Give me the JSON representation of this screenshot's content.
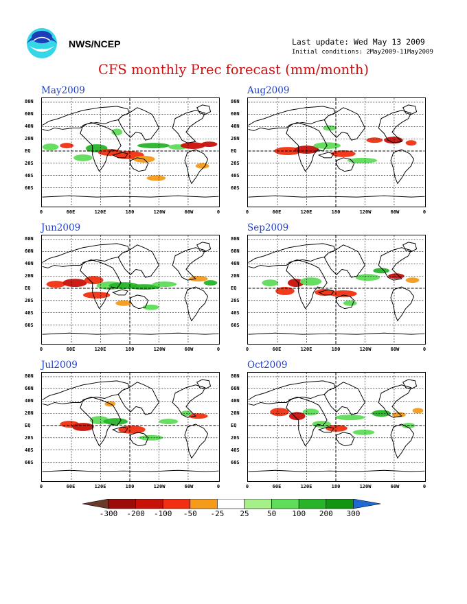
{
  "header": {
    "org": "NWS/NCEP",
    "last_update": "Last update: Wed May 13 2009",
    "initial_conditions": "Initial conditions: 2May2009-11May2009",
    "title": "CFS monthly Prec forecast (mm/month)"
  },
  "axes": {
    "lat_labels": [
      "80N",
      "60N",
      "40N",
      "20N",
      "EQ",
      "20S",
      "40S",
      "60S"
    ],
    "lon_labels": [
      "0",
      "60E",
      "120E",
      "180",
      "120W",
      "60W",
      "0"
    ]
  },
  "panels": [
    {
      "title": "May2009"
    },
    {
      "title": "Aug2009"
    },
    {
      "title": "Jun2009"
    },
    {
      "title": "Sep2009"
    },
    {
      "title": "Jul2009"
    },
    {
      "title": "Oct2009"
    }
  ],
  "legend": {
    "labels": [
      "-300",
      "-200",
      "-100",
      "-50",
      "-25",
      "25",
      "50",
      "100",
      "200",
      "300"
    ],
    "colors": [
      "#6b3a2a",
      "#9c0c08",
      "#c81108",
      "#f03010",
      "#f59a1a",
      "#ffffff",
      "#a6f08a",
      "#5fdc5a",
      "#28b428",
      "#119611",
      "#1e6ad2"
    ]
  },
  "colors": {
    "title": "#cc1010",
    "panel_title": "#1f3fd0"
  }
}
